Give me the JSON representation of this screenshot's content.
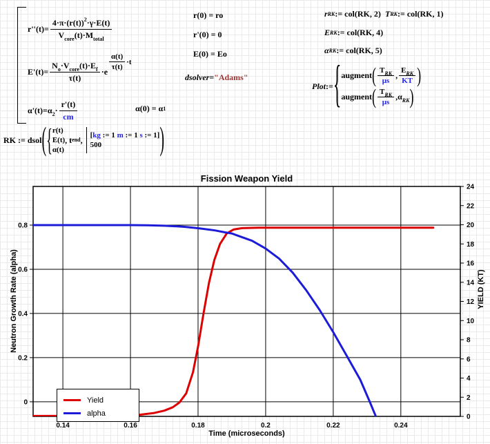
{
  "eq": {
    "r2": {
      "lhs": "r''(t)",
      "eq": " = ",
      "num_a": "4·π·(r(t))",
      "num_exp": "2",
      "num_b": "·γ·E(t)",
      "den_a": "V",
      "den_a_sub": "core",
      "den_b": "(t)·M",
      "den_b_sub": "total"
    },
    "E1": {
      "lhs": "E'(t)",
      "eq": " = ",
      "num_a": "N",
      "num_a_sub": "o",
      "num_b": "·V",
      "num_b_sub": "core",
      "num_c": "(t)·E",
      "num_c_sub": "f",
      "den": "τ(t)",
      "times_e": "·e",
      "exp_num": "α(t)",
      "exp_den": "τ(t)",
      "exp_tail": "·t"
    },
    "a1": {
      "lhs": "α'(t)",
      "eq": " = ",
      "coef": "α",
      "coef_sub": "2",
      "times": "·",
      "num": "r'(t)",
      "den": "cm"
    },
    "ic_r": {
      "text": "r(0) = ro"
    },
    "ic_rp": {
      "text": "r'(0) = 0"
    },
    "ic_E": {
      "text": "E(0) = Eo"
    },
    "ic_a": {
      "lhs": "α(0) = α",
      "sub": "1"
    },
    "dsolver": {
      "name": "dsolver",
      "eq": " = ",
      "value": "\"Adams\""
    },
    "col_r": {
      "base": "r",
      "sub": "RK",
      "rest": " := col(RK, 2)"
    },
    "col_T": {
      "base": "T",
      "sub": "RK",
      "rest": " := col(RK, 1)"
    },
    "col_E": {
      "base": "E",
      "sub": "RK",
      "rest": " := col(RK, 4)"
    },
    "col_a": {
      "base": "α",
      "sub": "RK",
      "rest": " := col(RK, 5)"
    },
    "plot": {
      "name": "Plot",
      "assign": " := ",
      "fn": "augment",
      "open": "(",
      "comma": ", ",
      "close": ")",
      "T": "T",
      "T_sub": "RK",
      "us": "μs",
      "E": "E",
      "E_sub": "RK",
      "KT": "KT",
      "alpha": "α",
      "alpha_sub": "RK"
    },
    "rk": {
      "lhs": "RK := dsol",
      "rows": [
        "r(t)",
        "E(t)",
        "α(t)"
      ],
      "comma1": ", t",
      "t_sub": "end",
      "comma2": ", ",
      "open_sq": "[",
      "kg": "kg",
      "v1": " := 1 ",
      "m": "m",
      "v2": " := 1 ",
      "s": "s",
      "v3": " := 1",
      "close_sq": "]",
      "n": "500"
    }
  },
  "chart": {
    "title": "Fission Weapon Yield",
    "x_label": "Time (microseconds)",
    "y_left_label": "Neutron Growth Rate (alpha)",
    "y_right_label": "YIELD (KT)",
    "legend": {
      "items": [
        {
          "label": "Yield",
          "color": "#dd0000"
        },
        {
          "label": "alpha",
          "color": "#1c1cd8"
        }
      ]
    }
  },
  "chart_data": {
    "type": "line",
    "title": "Fission Weapon Yield",
    "xlabel": "Time (microseconds)",
    "ylabel_left": "Neutron Growth Rate (alpha)",
    "ylabel_right": "YIELD (KT)",
    "xlim": [
      0.1312,
      0.2576
    ],
    "ylim_left": [
      -0.066,
      0.975
    ],
    "ylim_right": [
      0,
      24
    ],
    "x_ticks": [
      0.14,
      0.16,
      0.18,
      0.2,
      0.22,
      0.24
    ],
    "x_tick_labels": [
      "0.14",
      "0.16",
      "0.18",
      "0.2",
      "0.22",
      "0.24"
    ],
    "y_left_ticks": [
      0,
      0.2,
      0.4,
      0.6,
      0.8
    ],
    "y_left_tick_labels": [
      "0",
      "0.2",
      "0.4",
      "0.6",
      "0.8"
    ],
    "y_right_ticks": [
      0,
      2,
      4,
      6,
      8,
      10,
      12,
      14,
      16,
      18,
      20,
      22,
      24
    ],
    "y_right_tick_labels": [
      "0",
      "2",
      "4",
      "6",
      "8",
      "10",
      "12",
      "14",
      "16",
      "18",
      "20",
      "22",
      "24"
    ],
    "grid": true,
    "legend_position": "bottom-left",
    "series": [
      {
        "name": "Yield",
        "axis": "right",
        "color": "#dd0000",
        "points": [
          [
            0.1312,
            0.04
          ],
          [
            0.15,
            0.06
          ],
          [
            0.158,
            0.1
          ],
          [
            0.163,
            0.18
          ],
          [
            0.167,
            0.35
          ],
          [
            0.17,
            0.6
          ],
          [
            0.1725,
            0.95
          ],
          [
            0.1745,
            1.45
          ],
          [
            0.1765,
            2.4
          ],
          [
            0.1785,
            4.6
          ],
          [
            0.18,
            7.3
          ],
          [
            0.1816,
            10.7
          ],
          [
            0.1832,
            13.9
          ],
          [
            0.1848,
            16.3
          ],
          [
            0.1865,
            18.0
          ],
          [
            0.1885,
            19.1
          ],
          [
            0.1905,
            19.5
          ],
          [
            0.193,
            19.65
          ],
          [
            0.198,
            19.7
          ],
          [
            0.21,
            19.7
          ],
          [
            0.23,
            19.7
          ],
          [
            0.2496,
            19.7
          ]
        ]
      },
      {
        "name": "alpha",
        "axis": "left",
        "color": "#1c1cd8",
        "points": [
          [
            0.1312,
            0.8
          ],
          [
            0.16,
            0.8
          ],
          [
            0.165,
            0.799
          ],
          [
            0.17,
            0.797
          ],
          [
            0.173,
            0.795
          ],
          [
            0.176,
            0.792
          ],
          [
            0.178,
            0.789
          ],
          [
            0.18,
            0.786
          ],
          [
            0.183,
            0.78
          ],
          [
            0.185,
            0.776
          ],
          [
            0.188,
            0.767
          ],
          [
            0.19,
            0.762
          ],
          [
            0.192,
            0.751
          ],
          [
            0.196,
            0.729
          ],
          [
            0.2,
            0.694
          ],
          [
            0.204,
            0.648
          ],
          [
            0.208,
            0.585
          ],
          [
            0.212,
            0.505
          ],
          [
            0.216,
            0.415
          ],
          [
            0.22,
            0.315
          ],
          [
            0.2243,
            0.2
          ],
          [
            0.228,
            0.1
          ],
          [
            0.2308,
            0.0
          ],
          [
            0.2327,
            -0.07
          ]
        ]
      }
    ]
  }
}
